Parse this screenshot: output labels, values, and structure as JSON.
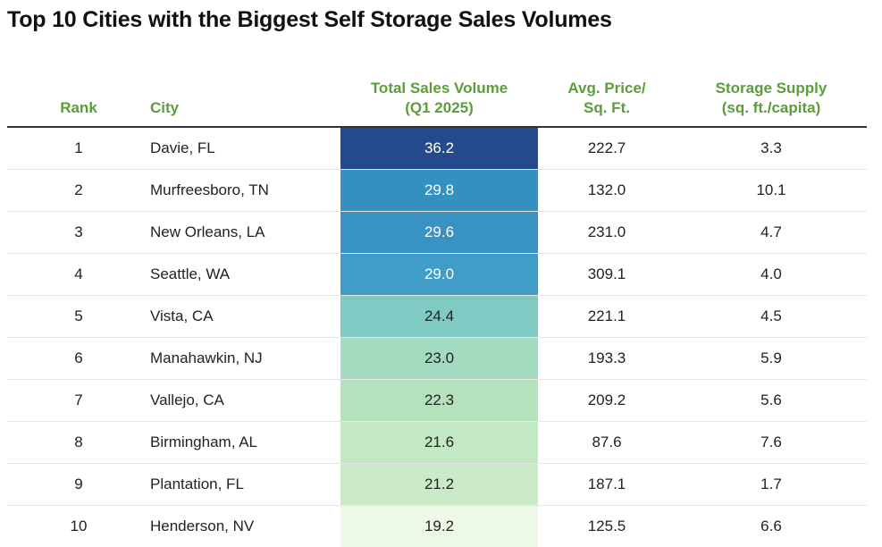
{
  "chart_data": {
    "type": "table",
    "title": "Top 10 Cities with the Biggest Self Storage Sales Volumes",
    "columns": [
      {
        "key": "rank",
        "label_lines": [
          "Rank"
        ]
      },
      {
        "key": "city",
        "label_lines": [
          "City"
        ]
      },
      {
        "key": "sales",
        "label_lines": [
          "Total Sales Volume",
          "(Q1 2025)"
        ]
      },
      {
        "key": "price",
        "label_lines": [
          "Avg. Price/",
          "Sq. Ft."
        ]
      },
      {
        "key": "supply",
        "label_lines": [
          "Storage Supply",
          "(sq. ft./capita)"
        ]
      }
    ],
    "rows": [
      {
        "rank": "1",
        "city": "Davie, FL",
        "sales": "36.2",
        "price": "222.7",
        "supply": "3.3"
      },
      {
        "rank": "2",
        "city": "Murfreesboro, TN",
        "sales": "29.8",
        "price": "132.0",
        "supply": "10.1"
      },
      {
        "rank": "3",
        "city": "New Orleans, LA",
        "sales": "29.6",
        "price": "231.0",
        "supply": "4.7"
      },
      {
        "rank": "4",
        "city": "Seattle, WA",
        "sales": "29.0",
        "price": "309.1",
        "supply": "4.0"
      },
      {
        "rank": "5",
        "city": "Vista, CA",
        "sales": "24.4",
        "price": "221.1",
        "supply": "4.5"
      },
      {
        "rank": "6",
        "city": "Manahawkin, NJ",
        "sales": "23.0",
        "price": "193.3",
        "supply": "5.9"
      },
      {
        "rank": "7",
        "city": "Vallejo, CA",
        "sales": "22.3",
        "price": "209.2",
        "supply": "5.6"
      },
      {
        "rank": "8",
        "city": "Birmingham, AL",
        "sales": "21.6",
        "price": "87.6",
        "supply": "7.6"
      },
      {
        "rank": "9",
        "city": "Plantation, FL",
        "sales": "21.2",
        "price": "187.1",
        "supply": "1.7"
      },
      {
        "rank": "10",
        "city": "Henderson, NV",
        "sales": "19.2",
        "price": "125.5",
        "supply": "6.6"
      }
    ],
    "heatmap_column": "sales",
    "cell_colors": [
      "#244a8c",
      "#3590c2",
      "#3892c3",
      "#3f9dc8",
      "#7fcbc4",
      "#a2dbc0",
      "#b4e2bd",
      "#c3e8c4",
      "#cbebc8",
      "#eef8e6"
    ],
    "cell_text_colors": [
      "#ffffff",
      "#ffffff",
      "#ffffff",
      "#ffffff",
      "#222222",
      "#222222",
      "#222222",
      "#222222",
      "#222222",
      "#222222"
    ]
  }
}
